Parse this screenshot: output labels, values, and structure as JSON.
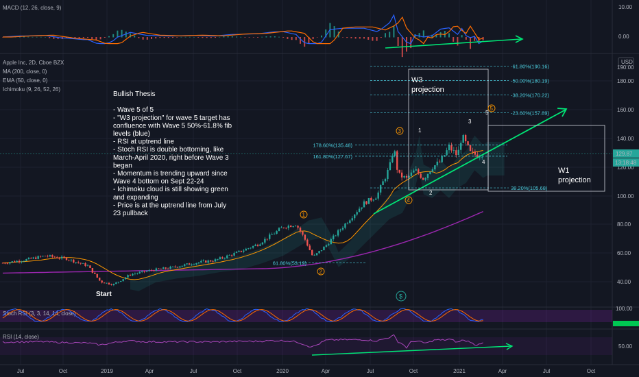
{
  "chart_data": {
    "type": "candlestick",
    "symbol_title": "Apple Inc, 2D, Cboe BZX",
    "indicators_legend": [
      "MA (200, close, 0)",
      "EMA (50, close, 0)",
      "Ichimoku (9, 26, 52, 26)"
    ],
    "macd_label": "MACD (12, 26, close, 9)",
    "stoch_label": "Stoch RSI (3, 3, 14, 14, close)",
    "rsi_label": "RSI (14, close)",
    "currency": "USD",
    "last_price": "129.87",
    "countdown": "13:18:48",
    "price_ticks": [
      "190.00",
      "180.00",
      "160.00",
      "140.00",
      "120.00",
      "100.00",
      "80.00",
      "60.00",
      "40.00"
    ],
    "macd_ticks": [
      "10.00",
      "0.00"
    ],
    "stoch_ticks": [
      "100.00"
    ],
    "rsi_ticks": [
      "50.00"
    ],
    "time_ticks": [
      "Jul",
      "Oct",
      "2019",
      "Apr",
      "Jul",
      "Oct",
      "2020",
      "Apr",
      "Jul",
      "Oct",
      "2021",
      "Apr",
      "Jul",
      "Oct"
    ],
    "thesis": [
      "Bullish Thesis",
      "",
      "- Wave 5 of 5",
      "- \"W3 projection\" for wave 5 target has",
      "confluence with Wave 5 50%-61.8% fib",
      "levels (blue)",
      "- RSI at uptrend line",
      "- Stoch RSI is double bottoming, like",
      "March-April 2020, right before Wave 3",
      "began",
      "- Momentum is trending upward since",
      "Wave 4 bottom on Sept 22-24",
      "- Ichimoku cloud is still showing green",
      "and expanding",
      "- Price is at the uptrend line from July",
      "23 pullback"
    ],
    "fib_levels": [
      {
        "label": "-61.80%(190.16)",
        "price": 190.16
      },
      {
        "label": "-50.00%(180.19)",
        "price": 180.19
      },
      {
        "label": "-38.20%(170.22)",
        "price": 170.22
      },
      {
        "label": "-23.60%(157.89)",
        "price": 157.89
      },
      {
        "label": "178.60%(135.48)",
        "price": 135.48
      },
      {
        "label": "161.80%(127.67)",
        "price": 127.67
      },
      {
        "label": "38.20%(105.68)",
        "price": 105.68
      },
      {
        "label": "61.80%(53.19)",
        "price": 53.19
      }
    ],
    "wave_labels_circled": [
      "1",
      "2",
      "3",
      "4",
      "5"
    ],
    "wave_labels_plain": [
      "1",
      "2",
      "3",
      "4",
      "5"
    ],
    "start_label": "Start",
    "w3_box_label": [
      "W3",
      "projection"
    ],
    "w1_box_label": [
      "W1",
      "projection"
    ],
    "price_path": [
      {
        "t": 0,
        "p": 53
      },
      {
        "t": 5,
        "p": 55
      },
      {
        "t": 10,
        "p": 58
      },
      {
        "t": 15,
        "p": 56
      },
      {
        "t": 20,
        "p": 51
      },
      {
        "t": 23,
        "p": 40
      },
      {
        "t": 26,
        "p": 38
      },
      {
        "t": 30,
        "p": 45
      },
      {
        "t": 35,
        "p": 48
      },
      {
        "t": 40,
        "p": 50
      },
      {
        "t": 45,
        "p": 53
      },
      {
        "t": 50,
        "p": 55
      },
      {
        "t": 55,
        "p": 60
      },
      {
        "t": 60,
        "p": 66
      },
      {
        "t": 63,
        "p": 72
      },
      {
        "t": 66,
        "p": 78
      },
      {
        "t": 69,
        "p": 80
      },
      {
        "t": 71,
        "p": 70
      },
      {
        "t": 73,
        "p": 57
      },
      {
        "t": 76,
        "p": 65
      },
      {
        "t": 79,
        "p": 75
      },
      {
        "t": 82,
        "p": 85
      },
      {
        "t": 85,
        "p": 95
      },
      {
        "t": 88,
        "p": 100
      },
      {
        "t": 91,
        "p": 120
      },
      {
        "t": 92,
        "p": 134
      },
      {
        "t": 93,
        "p": 115
      },
      {
        "t": 95,
        "p": 112
      },
      {
        "t": 97,
        "p": 118
      },
      {
        "t": 99,
        "p": 112
      },
      {
        "t": 101,
        "p": 120
      },
      {
        "t": 103,
        "p": 124
      },
      {
        "t": 105,
        "p": 134
      },
      {
        "t": 107,
        "p": 128
      },
      {
        "t": 108,
        "p": 142
      },
      {
        "t": 110,
        "p": 130
      },
      {
        "t": 112,
        "p": 128
      },
      {
        "t": 113,
        "p": 129.87
      }
    ]
  }
}
